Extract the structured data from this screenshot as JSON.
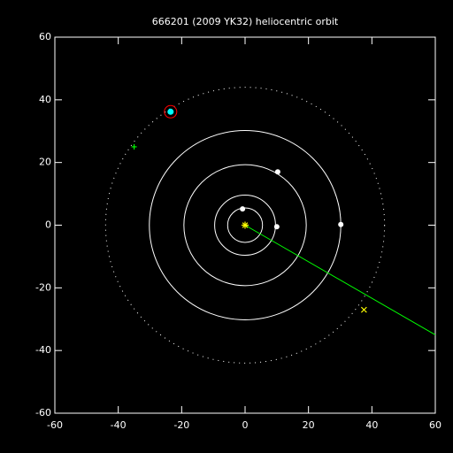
{
  "chart_data": {
    "type": "orbit",
    "title": "666201 (2009 YK32) heliocentric orbit",
    "xlim": [
      -60,
      60
    ],
    "ylim": [
      -60,
      60
    ],
    "xticks": [
      -60,
      -40,
      -20,
      0,
      20,
      40,
      60
    ],
    "yticks": [
      -60,
      -40,
      -20,
      0,
      20,
      40,
      60
    ],
    "orbits": [
      {
        "radius": 5.5,
        "style": "solid"
      },
      {
        "radius": 9.6,
        "style": "solid"
      },
      {
        "radius": 19.3,
        "style": "solid"
      },
      {
        "radius": 30.2,
        "style": "solid"
      },
      {
        "radius": 44,
        "style": "dotted"
      }
    ],
    "orbit_color": "#ffffff",
    "planets": {
      "x": [
        -0.8,
        10,
        10.3,
        30.2
      ],
      "y": [
        5.2,
        -0.5,
        17,
        0.2
      ],
      "color": "#ffffff"
    },
    "sun": {
      "x": 0,
      "y": 0,
      "color": "#ffff00"
    },
    "object": {
      "x": -23.5,
      "y": 36.2,
      "color": "#00ffff",
      "ring_color": "#ff0000"
    },
    "markers": [
      {
        "x": -35,
        "y": 25,
        "symbol": "plus",
        "color": "#00ff00"
      },
      {
        "x": 37.5,
        "y": -27,
        "symbol": "cross",
        "color": "#ffff00"
      }
    ],
    "line": {
      "x": [
        0,
        60
      ],
      "y": [
        0,
        -35
      ],
      "color": "#00ff00"
    }
  }
}
